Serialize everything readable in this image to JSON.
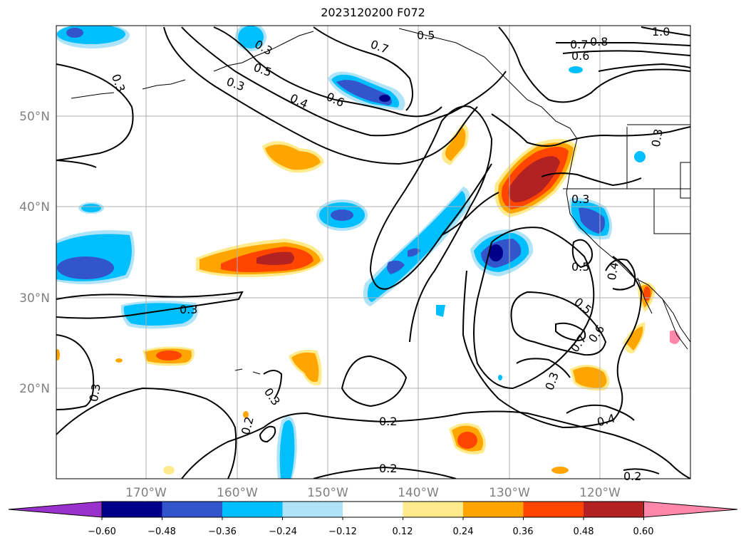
{
  "title": "2023120200 F072",
  "lat_labels": [
    "50°N",
    "40°N",
    "30°N",
    "20°N"
  ],
  "lon_labels": [
    "170°W",
    "160°W",
    "150°W",
    "140°W",
    "130°W",
    "120°W"
  ],
  "colorbar": {
    "ticks": [
      "−0.60",
      "−0.48",
      "−0.36",
      "−0.24",
      "−0.12",
      "0.12",
      "0.24",
      "0.36",
      "0.48",
      "0.60"
    ],
    "colors": [
      "#9932cc",
      "#00008b",
      "#3355cc",
      "#00bfff",
      "#aee3f8",
      "#ffffff",
      "#ffeb8c",
      "#ffa500",
      "#ff4500",
      "#b22222",
      "#ff88aa"
    ]
  },
  "contour_labels": [
    "0.3",
    "0.5",
    "0.7",
    "0.5",
    "0.3",
    "0.4",
    "0.6",
    "0.7",
    "0.8",
    "0.6",
    "1.0",
    "0.3",
    "0.3",
    "0.3",
    "0.5",
    "0.4",
    "0.5",
    "0.7",
    "0.6",
    "0.3",
    "0.4",
    "0.3",
    "0.3",
    "0.2",
    "0.3",
    "0.2",
    "0.2",
    "0.2"
  ]
}
